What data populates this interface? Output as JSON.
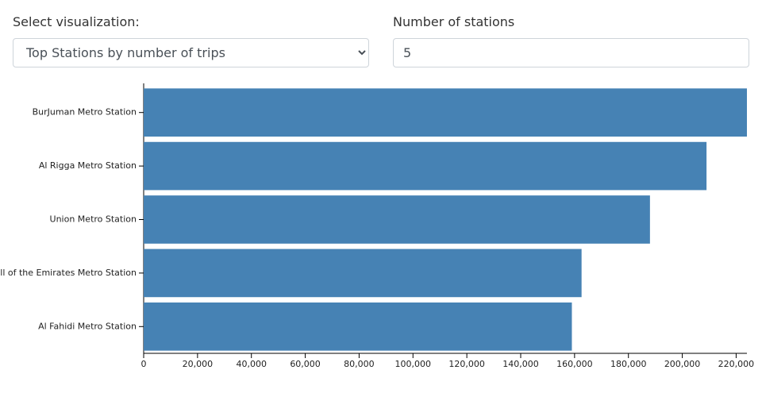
{
  "controls": {
    "visualization_label": "Select visualization:",
    "visualization_value": "Top Stations by number of trips",
    "stations_label": "Number of stations",
    "stations_value": 5
  },
  "chart_data": {
    "type": "bar",
    "orientation": "horizontal",
    "color": "#4682b4",
    "categories": [
      "BurJuman Metro Station",
      "Al Rigga Metro Station",
      "Union Metro Station",
      "Mall of the Emirates Metro Station",
      "Al Fahidi Metro Station"
    ],
    "values": [
      224000,
      209000,
      188000,
      162600,
      159000
    ],
    "xlim": [
      0,
      224000
    ],
    "xticks": [
      0,
      {
        "value": 20000,
        "label": "20,000"
      },
      {
        "value": 40000,
        "label": "40,000"
      },
      {
        "value": 60000,
        "label": "60,000"
      },
      {
        "value": 80000,
        "label": "80,000"
      },
      {
        "value": 100000,
        "label": "100,000"
      },
      {
        "value": 120000,
        "label": "120,000"
      },
      {
        "value": 140000,
        "label": "140,000"
      },
      {
        "value": 160000,
        "label": "160,000"
      },
      {
        "value": 180000,
        "label": "180,000"
      },
      {
        "value": 200000,
        "label": "200,000"
      },
      {
        "value": 220000,
        "label": "220,000"
      }
    ]
  }
}
